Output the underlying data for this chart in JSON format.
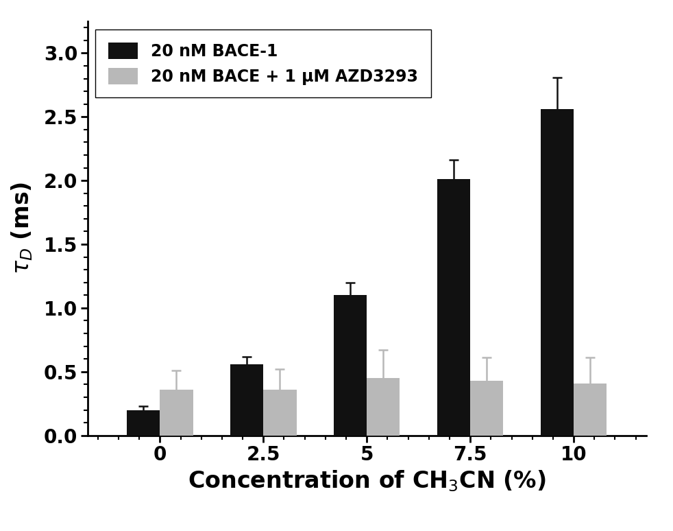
{
  "categories": [
    0,
    2.5,
    5,
    7.5,
    10
  ],
  "x_labels": [
    "0",
    "2.5",
    "5",
    "7.5",
    "10"
  ],
  "bace_values": [
    0.2,
    0.56,
    1.1,
    2.01,
    2.56
  ],
  "bace_errors": [
    0.03,
    0.06,
    0.1,
    0.15,
    0.25
  ],
  "bace_azd_values": [
    0.36,
    0.36,
    0.45,
    0.43,
    0.41
  ],
  "bace_azd_errors": [
    0.15,
    0.16,
    0.22,
    0.18,
    0.2
  ],
  "bar_color_bace": "#111111",
  "bar_color_bace_azd": "#b8b8b8",
  "legend_label_bace": "20 nM BACE-1",
  "legend_label_bace_azd": "20 nM BACE + 1 μM AZD3293",
  "xlabel": "Concentration of CH$_3$CN (%)",
  "ylabel": "$\\tau$$_D$ (ms)",
  "ylim": [
    0.0,
    3.25
  ],
  "yticks": [
    0.0,
    0.5,
    1.0,
    1.5,
    2.0,
    2.5,
    3.0
  ],
  "bar_width": 0.32,
  "label_fontsize": 24,
  "tick_fontsize": 20,
  "legend_fontsize": 17,
  "background_color": "#ffffff"
}
